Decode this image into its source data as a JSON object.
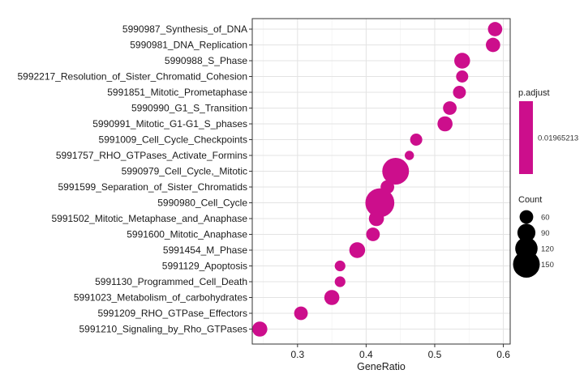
{
  "chart_data": {
    "type": "scatter",
    "title": "",
    "xlabel": "GeneRatio",
    "ylabel": "",
    "xlim": [
      0.234,
      0.61
    ],
    "xticks": [
      0.3,
      0.4,
      0.5,
      0.6
    ],
    "grid": true,
    "categories": [
      "5990987_Synthesis_of_DNA",
      "5990981_DNA_Replication",
      "5990988_S_Phase",
      "5992217_Resolution_of_Sister_Chromatid_Cohesion",
      "5991851_Mitotic_Prometaphase",
      "5990990_G1_S_Transition",
      "5990991_Mitotic_G1-G1_S_phases",
      "5991009_Cell_Cycle_Checkpoints",
      "5991757_RHO_GTPases_Activate_Formins",
      "5990979_Cell_Cycle,_Mitotic",
      "5991599_Separation_of_Sister_Chromatids",
      "5990980_Cell_Cycle",
      "5991502_Mitotic_Metaphase_and_Anaphase",
      "5991600_Mitotic_Anaphase",
      "5991454_M_Phase",
      "5991129_Apoptosis",
      "5991130_Programmed_Cell_Death",
      "5991023_Metabolism_of_carbohydrates",
      "5991209_RHO_GTPase_Effectors",
      "5991210_Signaling_by_Rho_GTPases"
    ],
    "gene_ratio": [
      0.588,
      0.585,
      0.54,
      0.54,
      0.536,
      0.522,
      0.515,
      0.473,
      0.463,
      0.443,
      0.431,
      0.42,
      0.415,
      0.41,
      0.387,
      0.362,
      0.362,
      0.35,
      0.305,
      0.245
    ],
    "count": [
      65,
      65,
      75,
      50,
      55,
      60,
      70,
      50,
      30,
      150,
      60,
      165,
      70,
      60,
      75,
      40,
      40,
      70,
      60,
      70
    ],
    "p_adjust": [
      0.01965213,
      0.01965213,
      0.01965213,
      0.01965213,
      0.01965213,
      0.01965213,
      0.01965213,
      0.01965213,
      0.01965213,
      0.01965213,
      0.01965213,
      0.01965213,
      0.01965213,
      0.01965213,
      0.01965213,
      0.01965213,
      0.01965213,
      0.01965213,
      0.01965213,
      0.01965213
    ],
    "point_color": "#cc0e8c",
    "legend_color": {
      "title": "p.adjust",
      "label": "0.01965213",
      "color": "#cc0e8c",
      "placement": "right"
    },
    "legend_size": {
      "title": "Count",
      "values": [
        60,
        90,
        120,
        150
      ],
      "labels": [
        "60",
        "90",
        "120",
        "150"
      ],
      "placement": "right"
    }
  }
}
